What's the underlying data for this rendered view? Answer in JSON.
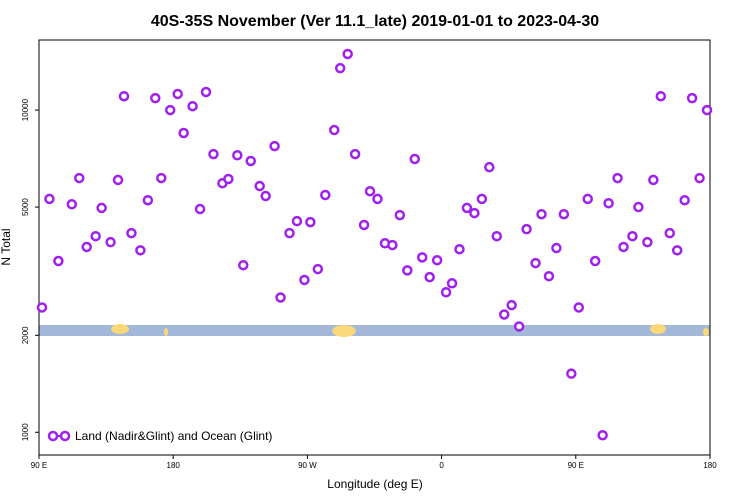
{
  "chart_data": {
    "type": "scatter",
    "title": "40S-35S November (Ver 11.1_late)   2019-01-01 to 2023-04-30",
    "x_label": "Longitude (deg E)",
    "y_label": "N Total",
    "xlim": [
      90,
      540
    ],
    "ylim": [
      850,
      16500
    ],
    "log_y": true,
    "legend": "lower left",
    "xticks": [
      {
        "value": 90,
        "label": "90 E"
      },
      180,
      {
        "value": 270,
        "label": "90 W"
      },
      {
        "value": 360,
        "label": "0"
      },
      {
        "value": 450,
        "label": "90 E"
      },
      {
        "value": 540,
        "label": "180"
      }
    ],
    "yticks": [
      1000,
      2000,
      5000,
      10000
    ],
    "series": [
      {
        "name": "Land (Nadir&Glint) and Ocean (Glint)",
        "color": "#a020f0",
        "x": [
          92,
          97,
          103,
          112,
          117,
          122,
          128,
          132,
          138,
          143,
          147,
          152,
          158,
          163,
          168,
          172,
          178,
          183,
          187,
          193,
          198,
          202,
          207,
          213,
          217,
          223,
          227,
          232,
          238,
          242,
          248,
          252,
          258,
          263,
          268,
          272,
          277,
          282,
          288,
          292,
          297,
          302,
          308,
          312,
          317,
          322,
          327,
          332,
          337,
          342,
          347,
          352,
          357,
          363,
          367,
          372,
          377,
          382,
          387,
          392,
          397,
          402,
          407,
          412,
          417,
          423,
          427,
          432,
          437,
          442,
          447,
          452,
          458,
          463,
          468,
          472,
          478,
          482,
          488,
          492,
          498,
          502,
          507,
          513,
          518,
          523,
          528,
          533,
          538
        ],
        "values": [
          2440,
          5300,
          3400,
          5100,
          6150,
          3760,
          4060,
          4970,
          3890,
          6070,
          11040,
          4150,
          3670,
          5250,
          10890,
          6150,
          10000,
          11220,
          8490,
          10280,
          4930,
          11380,
          7300,
          5930,
          6110,
          7240,
          3300,
          6950,
          5810,
          5410,
          7730,
          2620,
          4150,
          4520,
          2970,
          4490,
          3210,
          5450,
          8670,
          13490,
          14930,
          7300,
          4400,
          5600,
          5300,
          3860,
          3810,
          4720,
          3180,
          7050,
          3490,
          3030,
          3420,
          2720,
          2900,
          3700,
          4970,
          4790,
          5300,
          6650,
          4060,
          2320,
          2480,
          2130,
          4270,
          3350,
          4750,
          3050,
          3730,
          4750,
          1520,
          2440,
          5300,
          3400,
          979,
          5140,
          6150,
          3760,
          4060,
          5000,
          3890,
          6070,
          11040,
          4150,
          3670,
          5250,
          10890,
          6150,
          10000
        ]
      }
    ]
  }
}
